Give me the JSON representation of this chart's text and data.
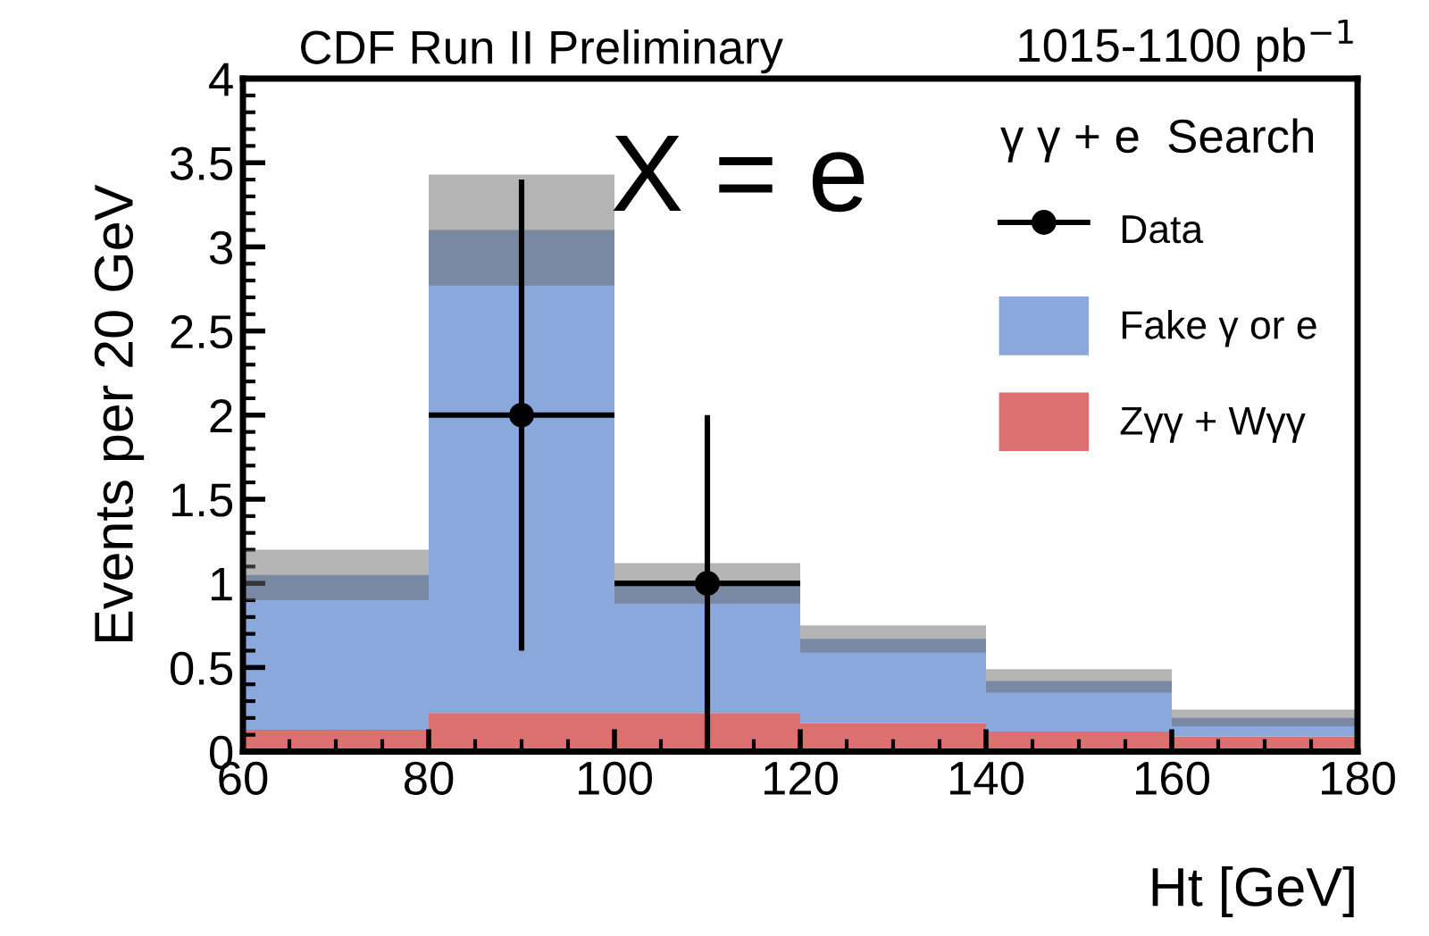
{
  "chart_data": {
    "type": "bar",
    "title": "CDF Run II Preliminary",
    "xlabel": "Ht [GeV]",
    "ylabel": "Events per 20 GeV",
    "legend_title": "γ γ + e  Search",
    "annotations": [
      "1015-1100 pb$^{−1}$",
      "X = e"
    ],
    "x": [
      70,
      90,
      110,
      130,
      150,
      170
    ],
    "stacked": true,
    "series": [
      {
        "name": "Zγγ + Wγγ",
        "color": "#dc7070",
        "values": [
          0.13,
          0.23,
          0.23,
          0.17,
          0.12,
          0.09
        ]
      },
      {
        "name": "Fake γ or e",
        "color": "#8aa8dc",
        "values": [
          0.92,
          2.87,
          0.77,
          0.5,
          0.3,
          0.11
        ],
        "errors": [
          0.15,
          0.33,
          0.12,
          0.08,
          0.07,
          0.05
        ]
      },
      {
        "name": "Data",
        "type": "scatter",
        "color": "#000000",
        "x": [
          90,
          110
        ],
        "values": [
          2,
          1
        ],
        "errors": [
          [
            0.6,
            3.4
          ],
          [
            0,
            2
          ]
        ],
        "xerrors": [
          10,
          10
        ]
      }
    ],
    "xlim": [
      60,
      180
    ],
    "xticks": [
      60,
      80,
      100,
      120,
      140,
      160,
      180
    ],
    "ylim": [
      0,
      4
    ],
    "yticks": [
      0,
      0.5,
      1,
      1.5,
      2,
      2.5,
      3,
      3.5,
      4
    ],
    "legend": "top right",
    "grid": false,
    "marker": "circle"
  }
}
